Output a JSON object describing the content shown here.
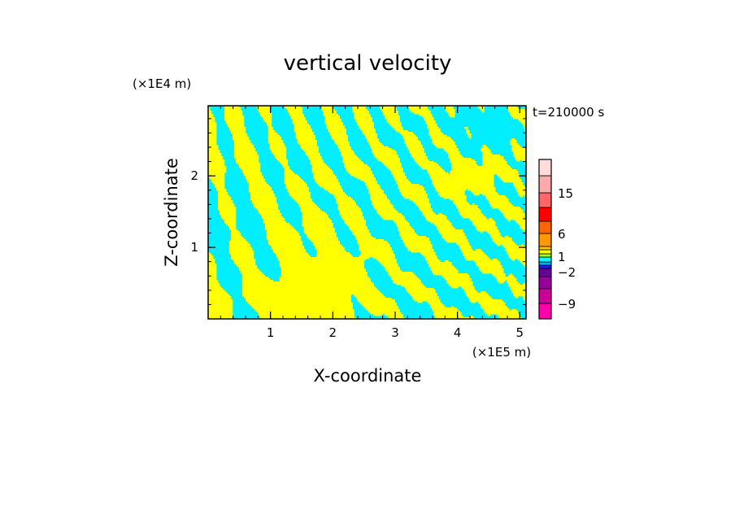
{
  "chart_data": {
    "type": "heatmap",
    "title": "vertical velocity",
    "xlabel": "X-coordinate",
    "ylabel": "Z-coordinate",
    "x_unit": "(×1E5 m)",
    "y_unit": "(×1E4 m)",
    "time_label": "t=210000 s",
    "xlim": [
      0,
      5.1
    ],
    "ylim": [
      0,
      2.98
    ],
    "xticks": [
      "1",
      "2",
      "3",
      "4",
      "5"
    ],
    "yticks": [
      "1",
      "2"
    ],
    "colorbar": {
      "tick_labels": [
        "15",
        "6",
        "1",
        "−2",
        "−9"
      ],
      "colors": [
        "#ff00aa",
        "#cc0099",
        "#990099",
        "#660099",
        "#1a1aff",
        "#00aaff",
        "#00ffff",
        "#aaff00",
        "#ffff00",
        "#ffcc00",
        "#ff9900",
        "#ff6600",
        "#ff0000",
        "#ff6666",
        "#ffaaaa",
        "#ffdddd"
      ]
    },
    "field_colors": {
      "positive": "#ffff00",
      "negative": "#00eeff"
    }
  }
}
